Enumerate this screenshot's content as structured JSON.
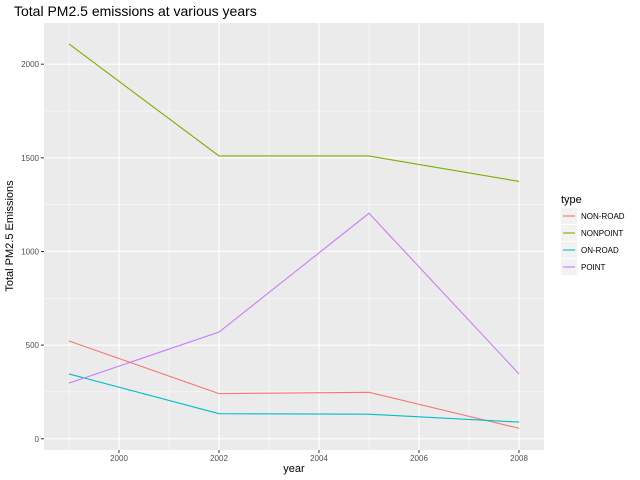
{
  "chart_data": {
    "type": "line",
    "title": "Total PM2.5 emissions at various years",
    "xlabel": "year",
    "ylabel": "Total PM2.5 Emissions",
    "x": [
      1999,
      2002,
      2005,
      2008
    ],
    "xlim": [
      1998.5,
      2008.5
    ],
    "ylim": [
      -60,
      2220
    ],
    "x_ticks": [
      2000,
      2002,
      2004,
      2006,
      2008
    ],
    "y_ticks": [
      0,
      500,
      1000,
      1500,
      2000
    ],
    "x_tick_labels": [
      "2000",
      "2002",
      "2004",
      "2006",
      "2008"
    ],
    "y_tick_labels": [
      "0",
      "500",
      "1000",
      "1500",
      "2000"
    ],
    "grid": true,
    "legend_title": "type",
    "legend_position": "right",
    "series": [
      {
        "name": "NON-ROAD",
        "color": "#F8766D",
        "values": [
          522,
          241,
          248,
          56
        ]
      },
      {
        "name": "NONPOINT",
        "color": "#7CAE00",
        "values": [
          2108,
          1510,
          1510,
          1374
        ]
      },
      {
        "name": "ON-ROAD",
        "color": "#00BFC4",
        "values": [
          346,
          134,
          131,
          89
        ]
      },
      {
        "name": "POINT",
        "color": "#C77CFF",
        "values": [
          297,
          570,
          1204,
          346
        ]
      }
    ]
  }
}
